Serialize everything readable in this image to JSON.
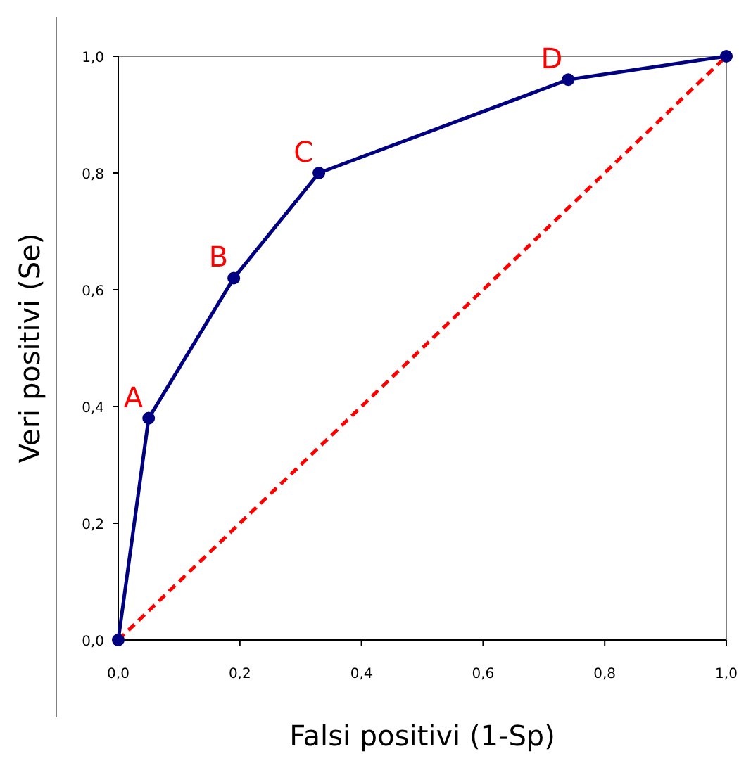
{
  "chart_data": {
    "type": "line",
    "xlabel": "Falsi positivi (1-Sp)",
    "ylabel": "Veri positivi (Se)",
    "xlim": [
      0,
      1
    ],
    "ylim": [
      0,
      1
    ],
    "xticks": [
      {
        "value": 0,
        "label": "0,0"
      },
      {
        "value": 0.2,
        "label": "0,2"
      },
      {
        "value": 0.4,
        "label": "0,4"
      },
      {
        "value": 0.6,
        "label": "0,6"
      },
      {
        "value": 0.8,
        "label": "0,8"
      },
      {
        "value": 1,
        "label": "1,0"
      }
    ],
    "yticks": [
      {
        "value": 0,
        "label": "0,0"
      },
      {
        "value": 0.2,
        "label": "0,2"
      },
      {
        "value": 0.4,
        "label": "0,4"
      },
      {
        "value": 0.6,
        "label": "0,6"
      },
      {
        "value": 0.8,
        "label": "0,8"
      },
      {
        "value": 1,
        "label": "1,0"
      }
    ],
    "grid": false,
    "series": [
      {
        "color": "#ff0000",
        "x": [
          0,
          1
        ],
        "values": [
          0,
          1
        ],
        "line_style": "dashed",
        "marker": "none"
      },
      {
        "color": "#000080",
        "x": [
          0,
          0.05,
          0.19,
          0.33,
          0.74,
          1
        ],
        "values": [
          0,
          0.38,
          0.62,
          0.8,
          0.96,
          1
        ],
        "line_style": "solid",
        "marker": "circle"
      }
    ],
    "annotations": [
      {
        "text": "A",
        "x": 0.05,
        "y": 0.38
      },
      {
        "text": "B",
        "x": 0.19,
        "y": 0.62
      },
      {
        "text": "C",
        "x": 0.33,
        "y": 0.8
      },
      {
        "text": "D",
        "x": 0.74,
        "y": 0.96
      }
    ]
  }
}
